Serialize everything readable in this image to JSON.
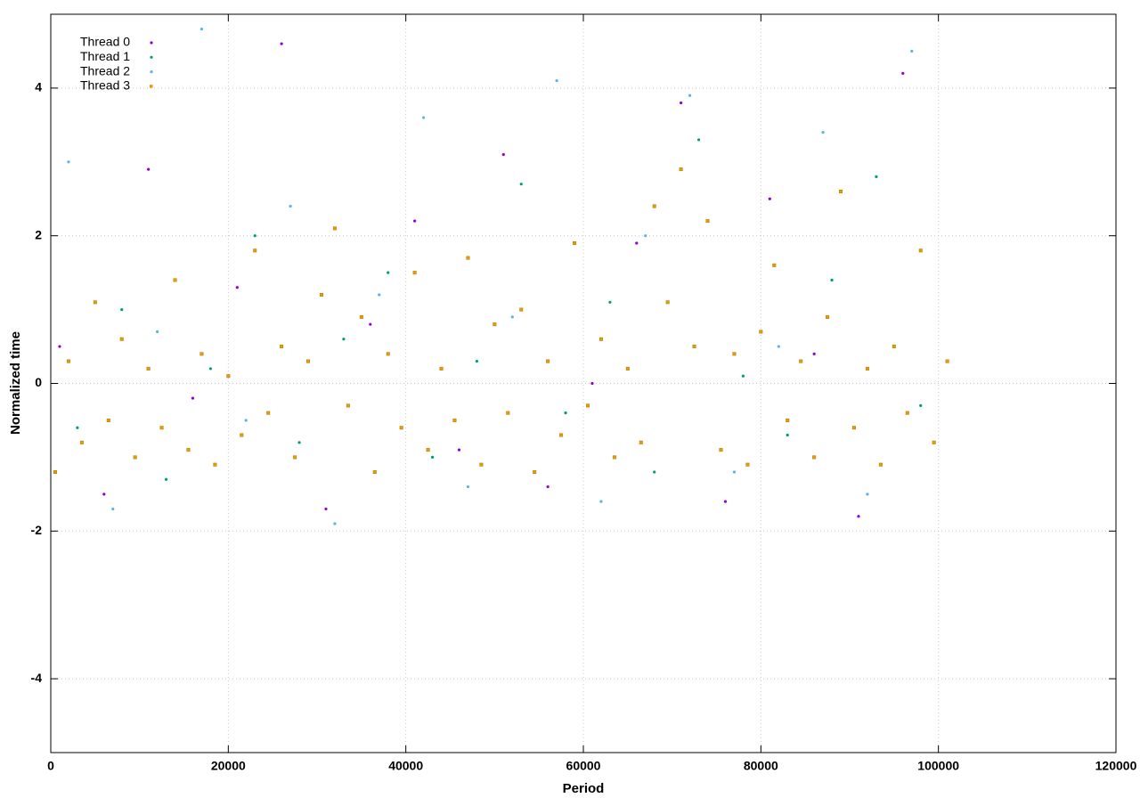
{
  "chart_data": {
    "type": "scatter",
    "xlabel": "Period",
    "ylabel": "Normalized time",
    "xlim": [
      0,
      120000
    ],
    "ylim": [
      -5,
      5
    ],
    "xticks": [
      0,
      20000,
      40000,
      60000,
      80000,
      100000,
      120000
    ],
    "yticks": [
      -4,
      -2,
      0,
      2,
      4
    ],
    "grid": true,
    "legend": "top-left",
    "series": [
      {
        "name": "Thread 0",
        "color": "#9400d3",
        "x": [
          1000,
          6000,
          11000,
          16000,
          21000,
          26000,
          31000,
          36000,
          41000,
          46000,
          51000,
          56000,
          61000,
          66000,
          71000,
          76000,
          81000,
          86000,
          91000,
          96000
        ],
        "values": [
          0.5,
          -1.5,
          2.9,
          -0.2,
          1.3,
          4.6,
          -1.7,
          0.8,
          2.2,
          -0.9,
          3.1,
          -1.4,
          0.0,
          1.9,
          3.8,
          -1.6,
          2.5,
          0.4,
          -1.8,
          4.2
        ]
      },
      {
        "name": "Thread 1",
        "color": "#009e73",
        "x": [
          3000,
          8000,
          13000,
          18000,
          23000,
          28000,
          33000,
          38000,
          43000,
          48000,
          53000,
          58000,
          63000,
          68000,
          73000,
          78000,
          83000,
          88000,
          93000,
          98000
        ],
        "values": [
          -0.6,
          1.0,
          -1.3,
          0.2,
          2.0,
          -0.8,
          0.6,
          1.5,
          -1.0,
          0.3,
          2.7,
          -0.4,
          1.1,
          -1.2,
          3.3,
          0.1,
          -0.7,
          1.4,
          2.8,
          -0.3
        ]
      },
      {
        "name": "Thread 2",
        "color": "#56b4e9",
        "x": [
          2000,
          7000,
          12000,
          17000,
          22000,
          27000,
          32000,
          37000,
          42000,
          47000,
          52000,
          57000,
          62000,
          67000,
          72000,
          77000,
          82000,
          87000,
          92000,
          97000
        ],
        "values": [
          3.0,
          -1.7,
          0.7,
          4.8,
          -0.5,
          2.4,
          -1.9,
          1.2,
          3.6,
          -1.4,
          0.9,
          4.1,
          -1.6,
          2.0,
          3.9,
          -1.2,
          0.5,
          3.4,
          -1.5,
          4.5
        ]
      },
      {
        "name": "Thread 3",
        "color": "#e69f00",
        "x": [
          500,
          2000,
          3500,
          5000,
          6500,
          8000,
          9500,
          11000,
          12500,
          14000,
          15500,
          17000,
          18500,
          20000,
          21500,
          23000,
          24500,
          26000,
          27500,
          29000,
          30500,
          32000,
          33500,
          35000,
          36500,
          38000,
          39500,
          41000,
          42500,
          44000,
          45500,
          47000,
          48500,
          50000,
          51500,
          53000,
          54500,
          56000,
          57500,
          59000,
          60500,
          62000,
          63500,
          65000,
          66500,
          68000,
          69500,
          71000,
          72500,
          74000,
          75500,
          77000,
          78500,
          80000,
          81500,
          83000,
          84500,
          86000,
          87500,
          89000,
          90500,
          92000,
          93500,
          95000,
          96500,
          98000,
          99500,
          101000
        ],
        "values": [
          -1.2,
          0.3,
          -0.8,
          1.1,
          -0.5,
          0.6,
          -1.0,
          0.2,
          -0.6,
          1.4,
          -0.9,
          0.4,
          -1.1,
          0.1,
          -0.7,
          1.8,
          -0.4,
          0.5,
          -1.0,
          0.3,
          1.2,
          2.1,
          -0.3,
          0.9,
          -1.2,
          0.4,
          -0.6,
          1.5,
          -0.9,
          0.2,
          -0.5,
          1.7,
          -1.1,
          0.8,
          -0.4,
          1.0,
          -1.2,
          0.3,
          -0.7,
          1.9,
          -0.3,
          0.6,
          -1.0,
          0.2,
          -0.8,
          2.4,
          1.1,
          2.9,
          0.5,
          2.2,
          -0.9,
          0.4,
          -1.1,
          0.7,
          1.6,
          -0.5,
          0.3,
          -1.0,
          0.9,
          2.6,
          -0.6,
          0.2,
          -1.1,
          0.5,
          -0.4,
          1.8,
          -0.8,
          0.3
        ]
      }
    ]
  }
}
